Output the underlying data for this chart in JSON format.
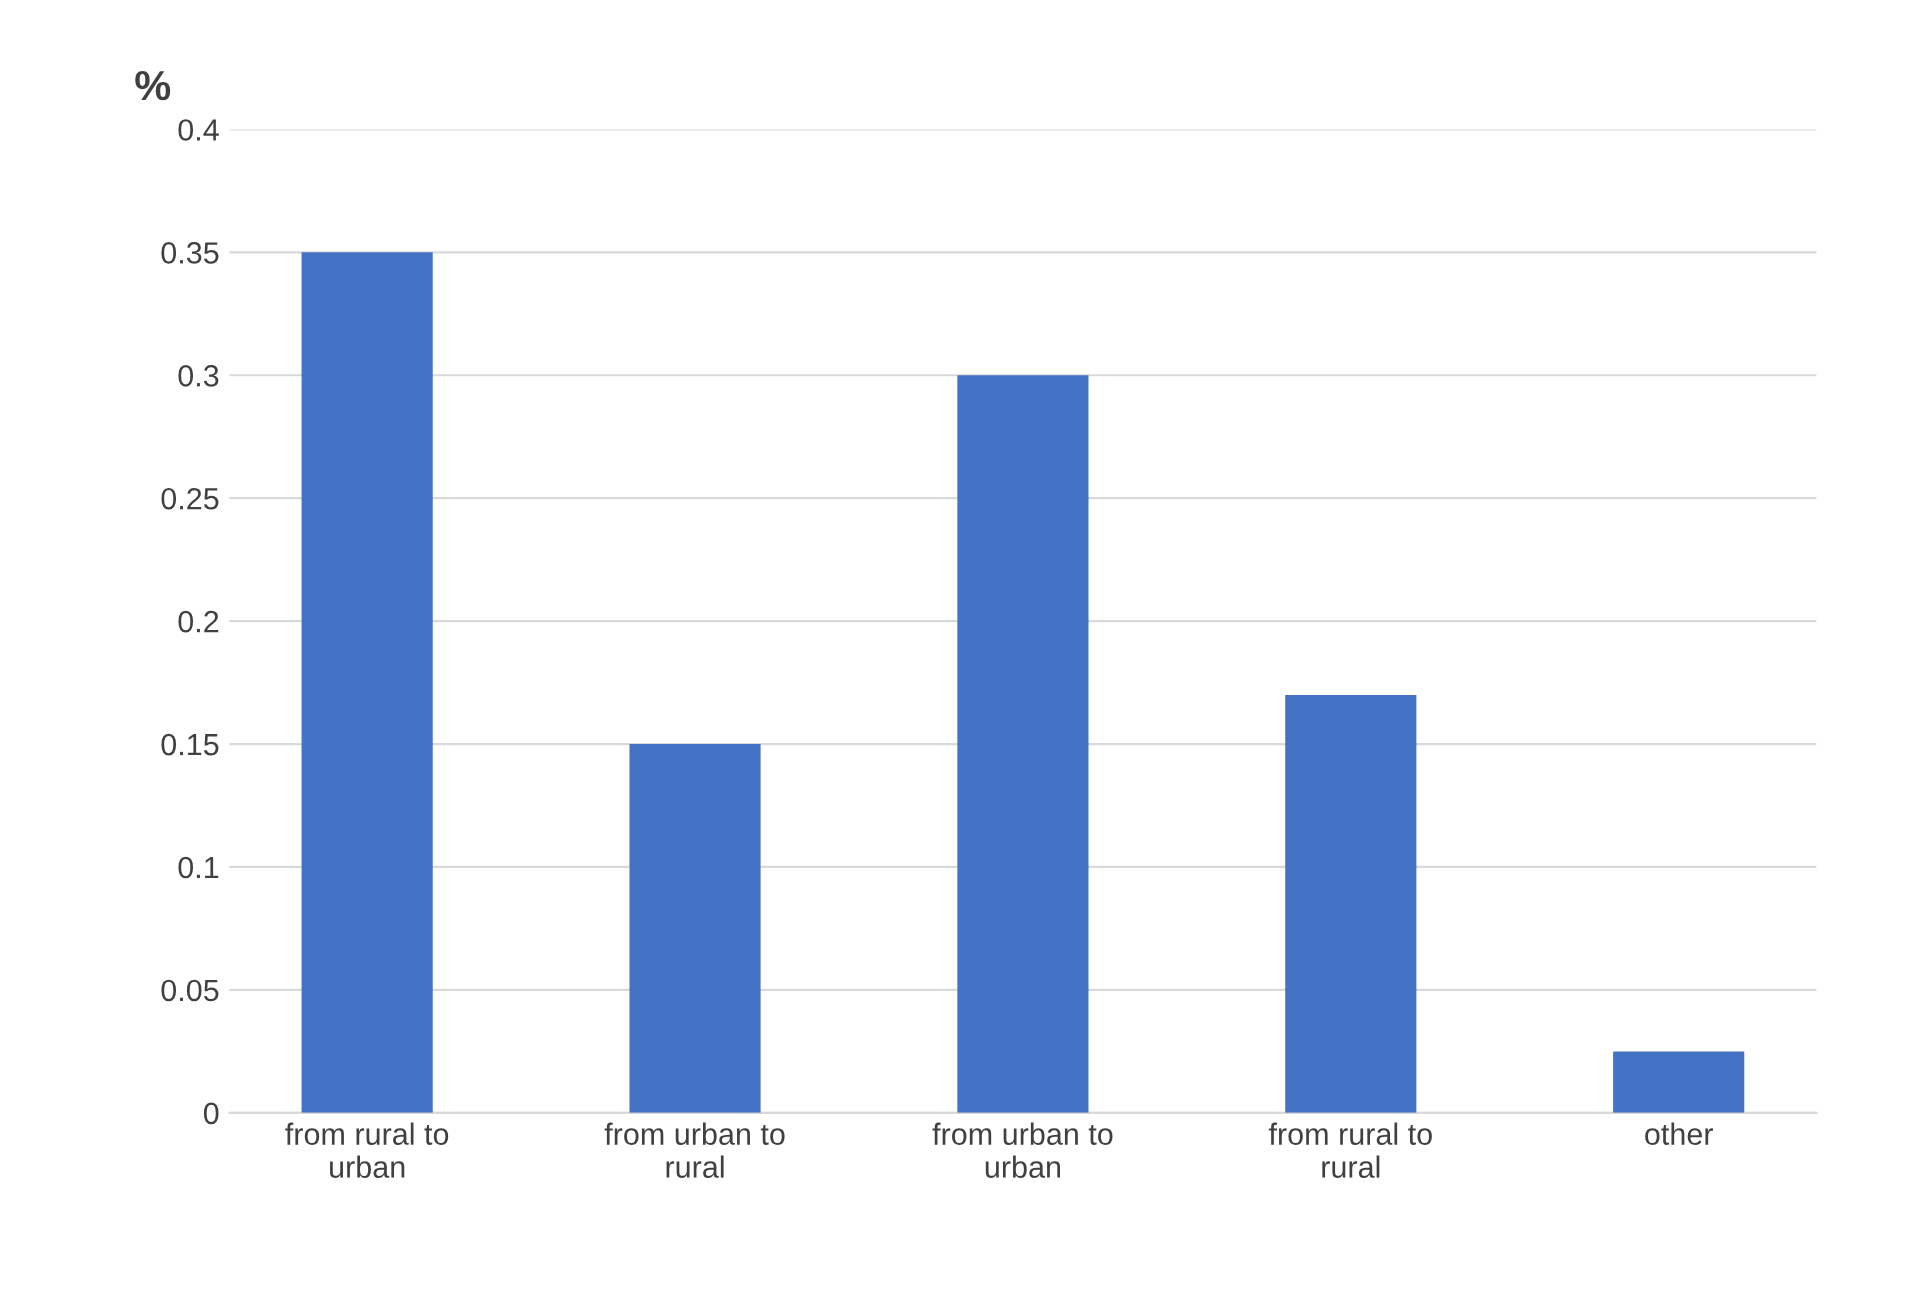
{
  "chart_data": {
    "type": "bar",
    "ylabel": "%",
    "categories": [
      "from rural to urban",
      "from urban to rural",
      "from urban to urban",
      "from rural to rural",
      "other"
    ],
    "values": [
      0.35,
      0.15,
      0.3,
      0.17,
      0.025
    ],
    "color": "#4472c4",
    "ylim": [
      0,
      0.4
    ],
    "yticks": [
      0,
      0.05,
      0.1,
      0.15,
      0.2,
      0.25,
      0.3,
      0.35,
      0.4
    ],
    "grid": "y",
    "legend": false
  }
}
